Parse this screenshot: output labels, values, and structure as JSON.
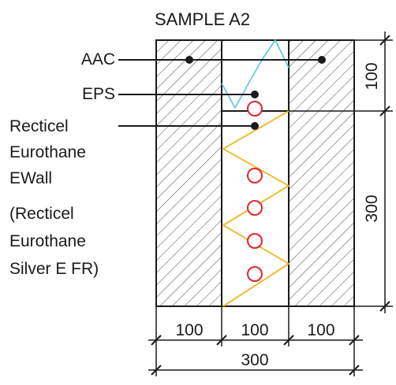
{
  "title": "SAMPLE A2",
  "labels": {
    "aac": "AAC",
    "eps": "EPS",
    "recticel": [
      "Recticel",
      "Eurothane",
      "EWall"
    ],
    "alt": [
      "(Recticel",
      "Eurothane",
      "Silver E FR)"
    ]
  },
  "dimensions": {
    "right_top": "100",
    "right_bottom": "300",
    "bottom_segments": [
      "100",
      "100",
      "100"
    ],
    "bottom_total": "300"
  },
  "colors": {
    "stroke": "#1a1a1a",
    "hatch": "#555555",
    "eps_line": "#57c4e0",
    "pir_line": "#f2b51c",
    "thermocouple": "#e8242b"
  },
  "markers": {
    "thermocouple_count": 5,
    "icon": "circle"
  }
}
